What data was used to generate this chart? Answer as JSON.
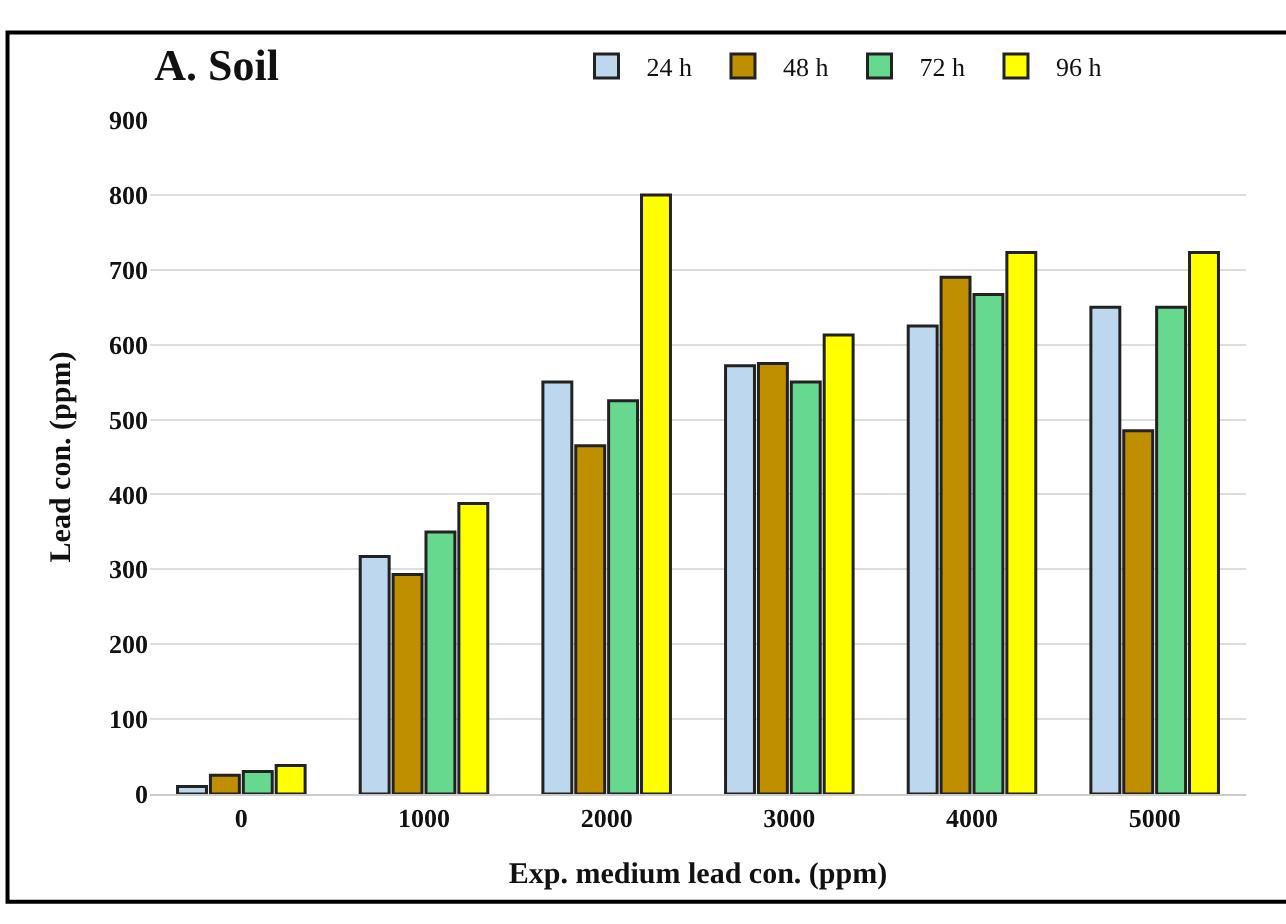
{
  "chart_data": {
    "type": "bar",
    "title": "A. Soil",
    "xlabel": "Exp. medium lead con. (ppm)",
    "ylabel": "Lead con. (ppm)",
    "categories": [
      "0",
      "1000",
      "2000",
      "3000",
      "4000",
      "5000"
    ],
    "series": [
      {
        "name": "24 h",
        "color": "#bdd7ee",
        "values": [
          10,
          317,
          550,
          572,
          625,
          650
        ]
      },
      {
        "name": "48 h",
        "color": "#bf8f00",
        "values": [
          25,
          293,
          465,
          575,
          690,
          485
        ]
      },
      {
        "name": "72 h",
        "color": "#66d98f",
        "values": [
          30,
          350,
          525,
          550,
          667,
          650
        ]
      },
      {
        "name": "96 h",
        "color": "#ffff00",
        "values": [
          38,
          388,
          800,
          613,
          723,
          723
        ]
      }
    ],
    "ylim": [
      0,
      900
    ],
    "yticks": [
      0,
      100,
      200,
      300,
      400,
      500,
      600,
      700,
      800,
      900
    ],
    "grid": "y",
    "legend": "top"
  }
}
